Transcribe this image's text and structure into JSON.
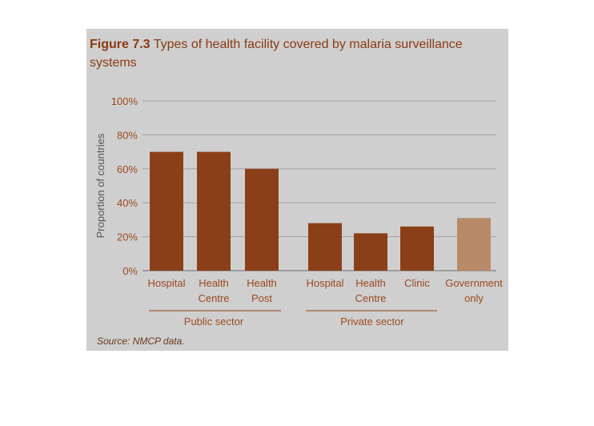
{
  "figure": {
    "label": "Figure 7.3",
    "title_line1": " Types of health facility covered by malaria surveillance",
    "title_line2": "systems",
    "source_label": "Source:",
    "source_text": " NMCP data."
  },
  "chart_data": {
    "type": "bar",
    "title": "Figure 7.3 Types of health facility covered by malaria surveillance systems",
    "ylabel": "Proportion of countries",
    "xlabel": "",
    "ylim": [
      0,
      100
    ],
    "yticks": [
      "0%",
      "20%",
      "40%",
      "60%",
      "80%",
      "100%"
    ],
    "ytick_values": [
      0,
      20,
      40,
      60,
      80,
      100
    ],
    "grid": true,
    "categories": [
      {
        "lines": [
          "Hospital"
        ],
        "group": "Public sector",
        "value": 70,
        "color": "#8b3f18"
      },
      {
        "lines": [
          "Health",
          "Centre"
        ],
        "group": "Public sector",
        "value": 70,
        "color": "#8b3f18"
      },
      {
        "lines": [
          "Health",
          "Post"
        ],
        "group": "Public sector",
        "value": 60,
        "color": "#8b3f18"
      },
      {
        "lines": [
          "Hospital"
        ],
        "group": "Private sector",
        "value": 28,
        "color": "#8b3f18"
      },
      {
        "lines": [
          "Health",
          "Centre"
        ],
        "group": "Private sector",
        "value": 22,
        "color": "#8b3f18"
      },
      {
        "lines": [
          "Clinic"
        ],
        "group": "Private sector",
        "value": 26,
        "color": "#8b3f18"
      },
      {
        "lines": [
          "Government",
          "only"
        ],
        "group": "",
        "value": 31,
        "color": "#b88a68"
      }
    ],
    "groups": [
      "Public sector",
      "Private sector"
    ]
  }
}
